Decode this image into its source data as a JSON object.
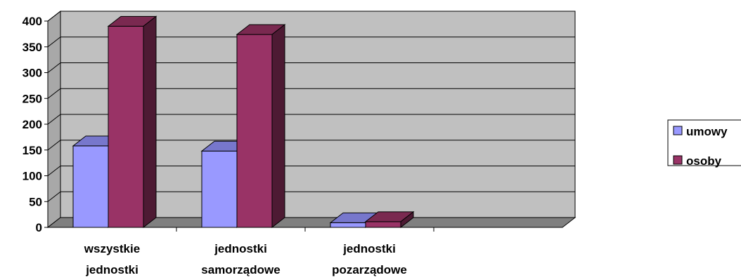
{
  "chart_data": {
    "type": "bar",
    "style": "3d-clustered-column",
    "categories": [
      [
        "wszystkie",
        "jednostki"
      ],
      [
        "jednostki",
        "samorządowe"
      ],
      [
        "jednostki",
        "pozarządowe"
      ],
      [
        "",
        ""
      ]
    ],
    "series": [
      {
        "name": "umowy",
        "values": [
          158,
          148,
          9,
          null
        ],
        "color": "#9999ff",
        "top_color": "#7777cc",
        "side_color": "#4d4d80"
      },
      {
        "name": "osoby",
        "values": [
          390,
          374,
          11,
          null
        ],
        "color": "#993366",
        "top_color": "#7a2950",
        "side_color": "#4d1a33"
      }
    ],
    "y_ticks": [
      "0",
      "50",
      "100",
      "150",
      "200",
      "250",
      "300",
      "350",
      "400"
    ],
    "ylim": [
      0,
      400
    ],
    "title": "",
    "xlabel": "",
    "ylabel": "",
    "grid": true,
    "wall_color": "#c0c0c0",
    "floor_color": "#808080",
    "legend_position": "right"
  }
}
